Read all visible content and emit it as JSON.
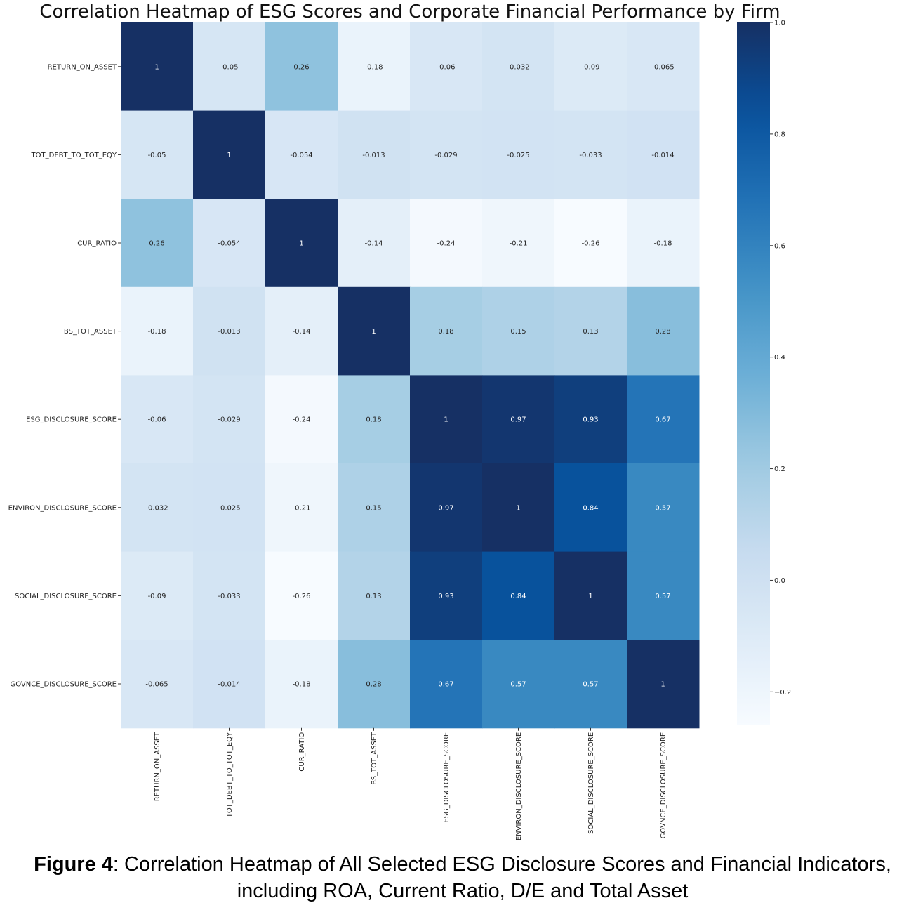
{
  "chart_data": {
    "type": "heatmap",
    "title": "Correlation Heatmap of ESG Scores and Corporate Financial Performance by Firm",
    "labels": [
      "RETURN_ON_ASSET",
      "TOT_DEBT_TO_TOT_EQY",
      "CUR_RATIO",
      "BS_TOT_ASSET",
      "ESG_DISCLOSURE_SCORE",
      "ENVIRON_DISCLOSURE_SCORE",
      "SOCIAL_DISCLOSURE_SCORE",
      "GOVNCE_DISCLOSURE_SCORE"
    ],
    "matrix": [
      [
        1,
        -0.05,
        0.26,
        -0.18,
        -0.06,
        -0.032,
        -0.09,
        -0.065
      ],
      [
        -0.05,
        1,
        -0.054,
        -0.013,
        -0.029,
        -0.025,
        -0.033,
        -0.014
      ],
      [
        0.26,
        -0.054,
        1,
        -0.14,
        -0.24,
        -0.21,
        -0.26,
        -0.18
      ],
      [
        -0.18,
        -0.013,
        -0.14,
        1,
        0.18,
        0.15,
        0.13,
        0.28
      ],
      [
        -0.06,
        -0.029,
        -0.24,
        0.18,
        1,
        0.97,
        0.93,
        0.67
      ],
      [
        -0.032,
        -0.025,
        -0.21,
        0.15,
        0.97,
        1,
        0.84,
        0.57
      ],
      [
        -0.09,
        -0.033,
        -0.26,
        0.13,
        0.93,
        0.84,
        1,
        0.57
      ],
      [
        -0.065,
        -0.014,
        -0.18,
        0.28,
        0.67,
        0.57,
        0.57,
        1
      ]
    ],
    "annotations": [
      [
        "1",
        "-0.05",
        "0.26",
        "-0.18",
        "-0.06",
        "-0.032",
        "-0.09",
        "-0.065"
      ],
      [
        "-0.05",
        "1",
        "-0.054",
        "-0.013",
        "-0.029",
        "-0.025",
        "-0.033",
        "-0.014"
      ],
      [
        "0.26",
        "-0.054",
        "1",
        "-0.14",
        "-0.24",
        "-0.21",
        "-0.26",
        "-0.18"
      ],
      [
        "-0.18",
        "-0.013",
        "-0.14",
        "1",
        "0.18",
        "0.15",
        "0.13",
        "0.28"
      ],
      [
        "-0.06",
        "-0.029",
        "-0.24",
        "0.18",
        "1",
        "0.97",
        "0.93",
        "0.67"
      ],
      [
        "-0.032",
        "-0.025",
        "-0.21",
        "0.15",
        "0.97",
        "1",
        "0.84",
        "0.57"
      ],
      [
        "-0.09",
        "-0.033",
        "-0.26",
        "0.13",
        "0.93",
        "0.84",
        "1",
        "0.57"
      ],
      [
        "-0.065",
        "-0.014",
        "-0.18",
        "0.28",
        "0.67",
        "0.57",
        "0.57",
        "1"
      ]
    ],
    "colormap": "Blues",
    "colorbar": {
      "vmin": -0.26,
      "vmax": 1.0,
      "ticks": [
        1.0,
        0.8,
        0.6,
        0.4,
        0.2,
        0.0,
        -0.2
      ],
      "tick_labels": [
        "1.0",
        "0.8",
        "0.6",
        "0.4",
        "0.2",
        "0.0",
        "−0.2"
      ]
    }
  },
  "caption": {
    "label": "Figure 4",
    "text": ": Correlation Heatmap of All Selected ESG Disclosure Scores and Financial Indicators, including ROA, Current Ratio, D/E and Total Asset"
  }
}
